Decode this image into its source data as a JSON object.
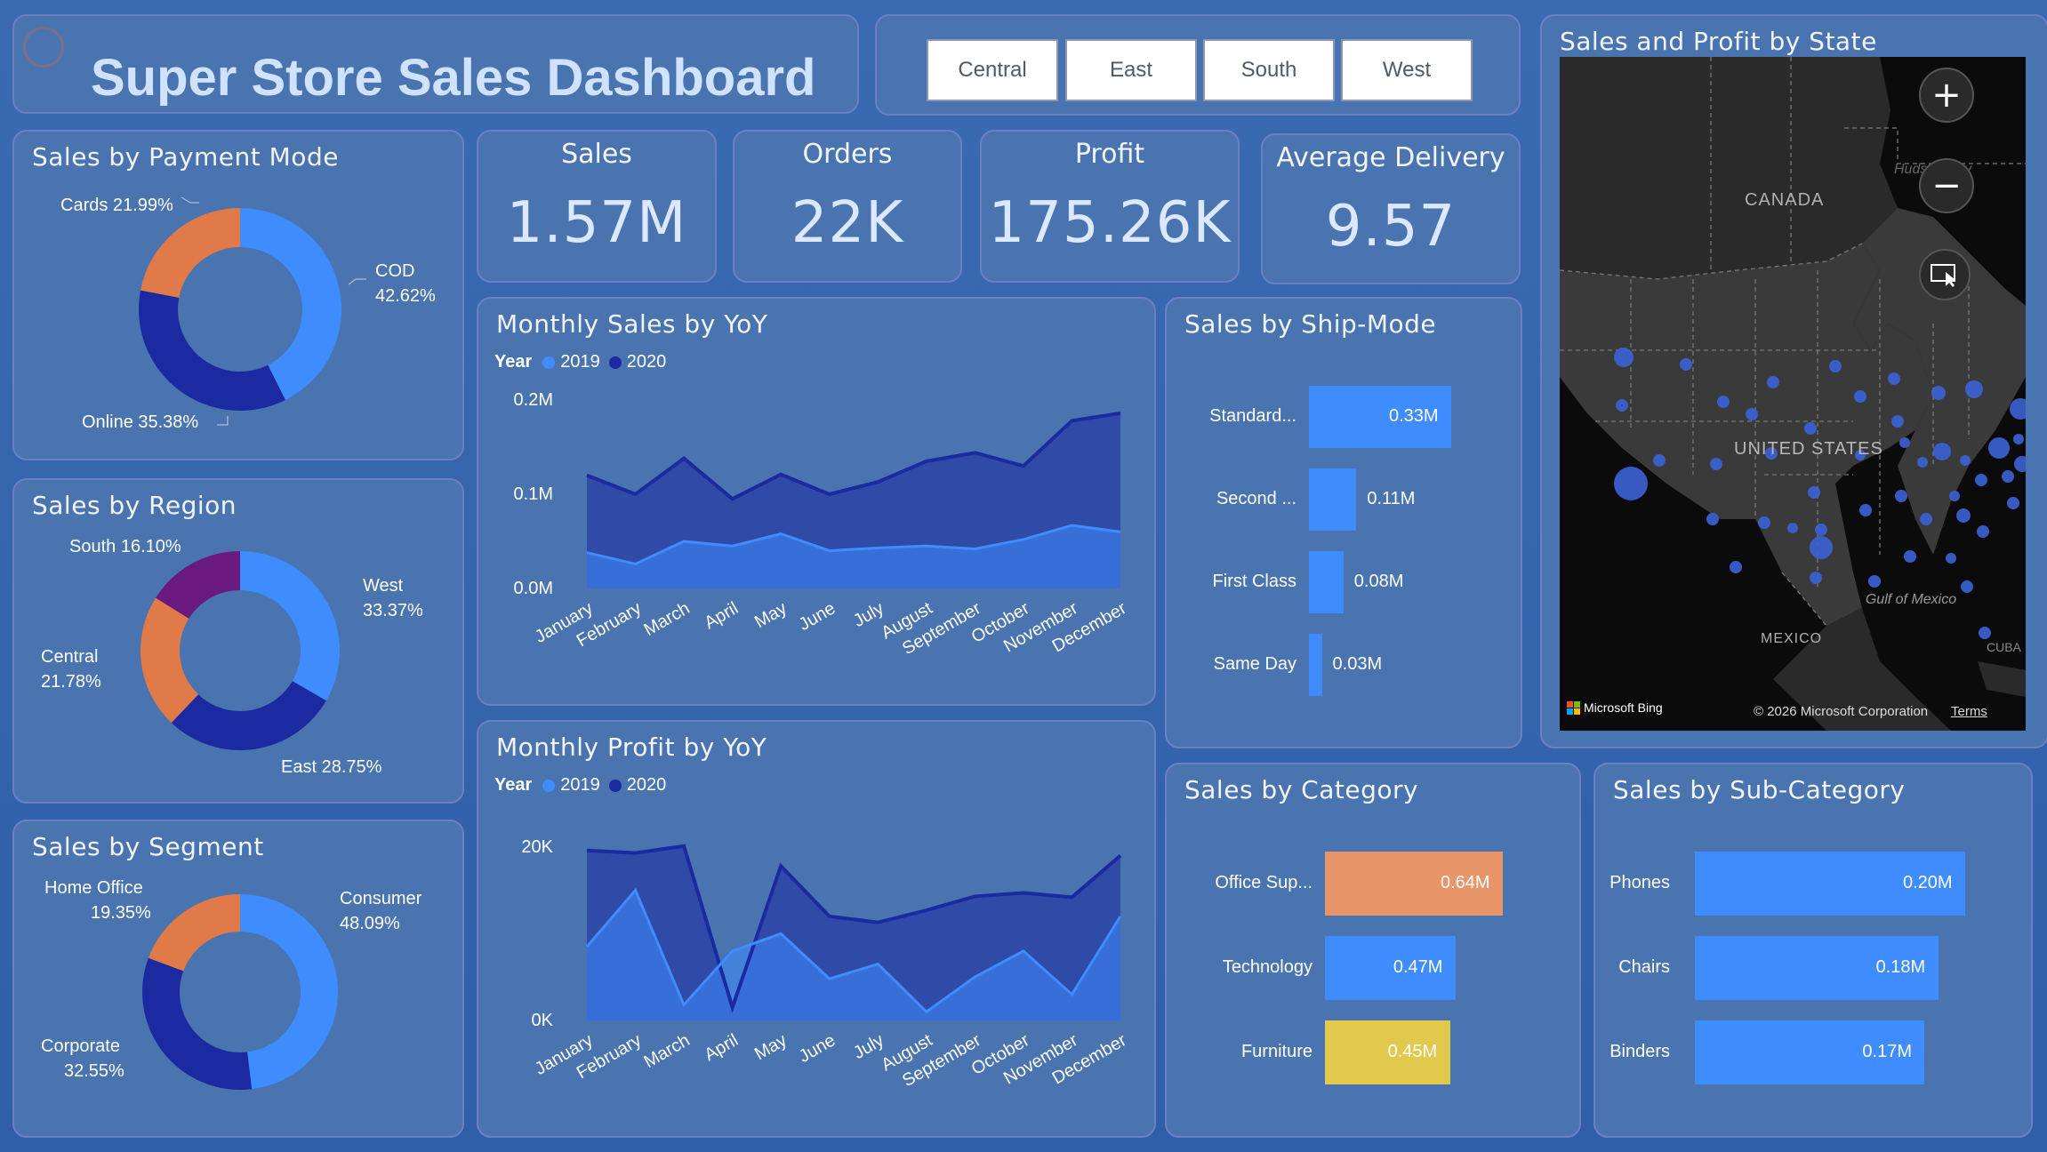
{
  "header": {
    "title": "Super Store Sales Dashboard"
  },
  "region_slicer": [
    "Central",
    "East",
    "South",
    "West"
  ],
  "kpis": [
    {
      "label": "Sales",
      "value": "1.57M"
    },
    {
      "label": "Orders",
      "value": "22K"
    },
    {
      "label": "Profit",
      "value": "175.26K"
    },
    {
      "label": "Average Delivery",
      "value": "9.57"
    }
  ],
  "payment": {
    "title": "Sales by Payment Mode",
    "labels": {
      "cod_name": "COD",
      "cod_pct": "42.62%",
      "online": "Online 35.38%",
      "cards": "Cards 21.99%"
    }
  },
  "region": {
    "title": "Sales by Region",
    "labels": {
      "west_name": "West",
      "west_pct": "33.37%",
      "east": "East 28.75%",
      "central_name": "Central",
      "central_pct": "21.78%",
      "south": "South 16.10%"
    }
  },
  "segment": {
    "title": "Sales by Segment",
    "labels": {
      "consumer_name": "Consumer",
      "consumer_pct": "48.09%",
      "corporate_name": "Corporate",
      "corporate_pct": "32.55%",
      "home_name": "Home Office",
      "home_pct": "19.35%"
    }
  },
  "monthly_sales": {
    "title": "Monthly Sales by YoY",
    "legend_title": "Year",
    "y_ticks": [
      "0.2M",
      "0.1M",
      "0.0M"
    ]
  },
  "monthly_profit": {
    "title": "Monthly Profit by YoY",
    "legend_title": "Year",
    "y_ticks": [
      "20K",
      "0K"
    ]
  },
  "shipmode": {
    "title": "Sales by Ship-Mode"
  },
  "category": {
    "title": "Sales by Category"
  },
  "subcategory": {
    "title": "Sales by Sub-Category"
  },
  "map": {
    "title": "Sales and Profit by State",
    "labels": {
      "canada": "CANADA",
      "us": "UNITED STATES",
      "mexico": "MEXICO",
      "gulf": "Gulf of Mexico",
      "cuba": "CUBA",
      "hudson": "Hudson Bay"
    },
    "credit": "Microsoft Bing",
    "copyright": "© 2026 Microsoft Corporation",
    "terms": "Terms"
  },
  "colors": {
    "series_2019": "#3f8cff",
    "series_2020": "#1b2aa0",
    "orange": "#e07a48",
    "purple": "#6a1a7e",
    "salmon": "#e8956a",
    "yellow": "#e3c84e"
  },
  "chart_data": [
    {
      "type": "pie",
      "title": "Sales by Payment Mode",
      "categories": [
        "COD",
        "Online",
        "Cards"
      ],
      "values": [
        42.62,
        35.38,
        21.99
      ]
    },
    {
      "type": "pie",
      "title": "Sales by Region",
      "categories": [
        "West",
        "East",
        "Central",
        "South"
      ],
      "values": [
        33.37,
        28.75,
        21.78,
        16.1
      ]
    },
    {
      "type": "pie",
      "title": "Sales by Segment",
      "categories": [
        "Consumer",
        "Corporate",
        "Home Office"
      ],
      "values": [
        48.09,
        32.55,
        19.35
      ]
    },
    {
      "type": "area",
      "title": "Monthly Sales by YoY",
      "legend": "Year",
      "categories": [
        "January",
        "February",
        "March",
        "April",
        "May",
        "June",
        "July",
        "August",
        "September",
        "October",
        "November",
        "December"
      ],
      "ylim": [
        0,
        0.2
      ],
      "series": [
        {
          "name": "2019",
          "values": [
            0.038,
            0.026,
            0.05,
            0.045,
            0.058,
            0.04,
            0.043,
            0.045,
            0.042,
            0.052,
            0.067,
            0.06
          ]
        },
        {
          "name": "2020",
          "values": [
            0.12,
            0.1,
            0.138,
            0.095,
            0.121,
            0.1,
            0.113,
            0.135,
            0.144,
            0.13,
            0.178,
            0.186
          ]
        }
      ]
    },
    {
      "type": "area",
      "title": "Monthly Profit by YoY",
      "legend": "Year",
      "categories": [
        "January",
        "February",
        "March",
        "April",
        "May",
        "June",
        "July",
        "August",
        "September",
        "October",
        "November",
        "December"
      ],
      "ylim": [
        0,
        25000
      ],
      "series": [
        {
          "name": "2019",
          "values": [
            8500,
            15000,
            1800,
            8000,
            10000,
            4800,
            6500,
            1000,
            5000,
            8000,
            3000,
            12000
          ]
        },
        {
          "name": "2020",
          "values": [
            19600,
            19300,
            20100,
            1500,
            17800,
            12000,
            11300,
            12700,
            14300,
            14700,
            14200,
            19000
          ]
        }
      ]
    },
    {
      "type": "bar",
      "title": "Sales by Ship-Mode",
      "orientation": "horizontal",
      "categories": [
        "Standard...",
        "Second ...",
        "First Class",
        "Same Day"
      ],
      "values": [
        0.33,
        0.11,
        0.08,
        0.03
      ],
      "value_labels": [
        "0.33M",
        "0.11M",
        "0.08M",
        "0.03M"
      ]
    },
    {
      "type": "bar",
      "title": "Sales by Category",
      "orientation": "horizontal",
      "categories": [
        "Office Sup...",
        "Technology",
        "Furniture"
      ],
      "values": [
        0.64,
        0.47,
        0.45
      ],
      "value_labels": [
        "0.64M",
        "0.47M",
        "0.45M"
      ]
    },
    {
      "type": "bar",
      "title": "Sales by Sub-Category",
      "orientation": "horizontal",
      "categories": [
        "Phones",
        "Chairs",
        "Binders"
      ],
      "values": [
        0.2,
        0.18,
        0.17
      ],
      "value_labels": [
        "0.20M",
        "0.18M",
        "0.17M"
      ]
    }
  ]
}
